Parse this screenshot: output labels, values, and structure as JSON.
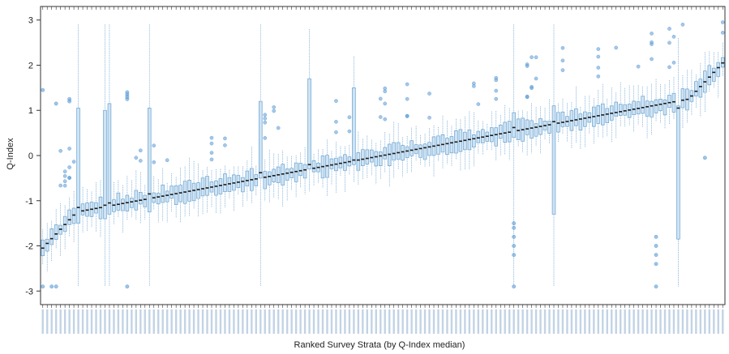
{
  "chart_data": {
    "type": "box",
    "title": "",
    "xlabel": "Ranked Survey Strata (by Q-Index median)",
    "ylabel": "Q-Index",
    "ylim": [
      -3.3,
      3.3
    ],
    "yticks": [
      -3,
      -2,
      -1,
      0,
      1,
      2,
      3
    ],
    "grid": false,
    "legend": "none",
    "colors": {
      "box": "#6aa3d0",
      "box_fill": "#cfe3f3",
      "median": "#1a1a1a",
      "outlier": "#5b9bd5",
      "axis": "#333333"
    },
    "n_strata": 154,
    "median_range": [
      -2.05,
      2.05
    ],
    "notable_strata": [
      {
        "rank": 9,
        "q1": -1.5,
        "q3": 1.05,
        "median": -1.15,
        "whisker_low": -2.9,
        "whisker_high": 2.9
      },
      {
        "rank": 15,
        "q1": -1.4,
        "q3": 1.0,
        "median": -1.1,
        "whisker_low": -2.9,
        "whisker_high": 2.9
      },
      {
        "rank": 16,
        "q1": -1.3,
        "q3": 1.15,
        "median": -1.05,
        "whisker_low": -2.9,
        "whisker_high": 2.9
      },
      {
        "rank": 25,
        "q1": -1.25,
        "q3": 1.05,
        "median": -0.85,
        "whisker_low": -2.9,
        "whisker_high": 2.9
      },
      {
        "rank": 50,
        "q1": -0.5,
        "q3": 1.2,
        "median": -0.38,
        "whisker_low": -2.9,
        "whisker_high": 2.9
      },
      {
        "rank": 61,
        "q1": -0.3,
        "q3": 1.7,
        "median": -0.2,
        "whisker_low": -0.8,
        "whisker_high": 2.8
      },
      {
        "rank": 71,
        "q1": -0.2,
        "q3": 1.5,
        "median": -0.1,
        "whisker_low": -0.6,
        "whisker_high": 2.2
      },
      {
        "rank": 107,
        "q1": 0.4,
        "q3": 0.95,
        "median": 0.62,
        "whisker_low": -2.9,
        "whisker_high": 2.9
      },
      {
        "rank": 116,
        "q1": -1.3,
        "q3": 1.1,
        "median": 0.75,
        "whisker_low": -2.9,
        "whisker_high": 2.9
      },
      {
        "rank": 144,
        "q1": -1.85,
        "q3": 1.1,
        "median": 1.05,
        "whisker_low": -2.9,
        "whisker_high": 2.6
      }
    ]
  }
}
